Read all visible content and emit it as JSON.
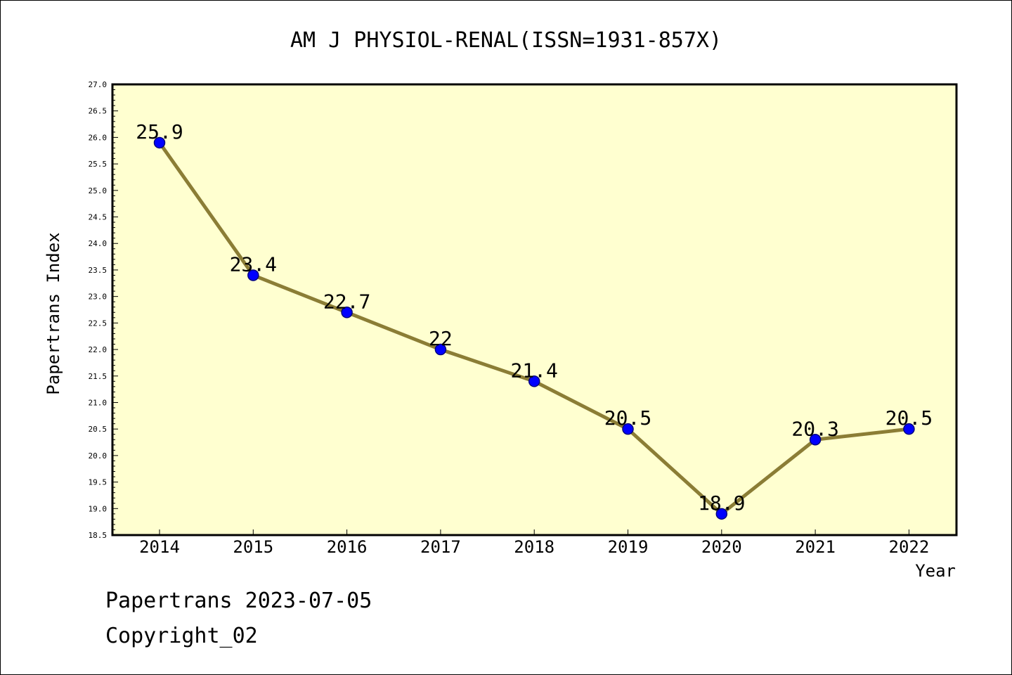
{
  "chart_data": {
    "type": "line",
    "title": "AM J PHYSIOL-RENAL(ISSN=1931-857X)",
    "xlabel": "Year",
    "ylabel": "Papertrans Index",
    "categories": [
      "2014",
      "2015",
      "2016",
      "2017",
      "2018",
      "2019",
      "2020",
      "2021",
      "2022"
    ],
    "series": [
      {
        "values": [
          25.9,
          23.4,
          22.7,
          22,
          21.4,
          20.5,
          18.9,
          20.3,
          20.5
        ],
        "labels": [
          "25.9",
          "23.4",
          "22.7",
          "22",
          "21.4",
          "20.5",
          "18.9",
          "20.3",
          "20.5"
        ]
      }
    ],
    "ylim": [
      18.5,
      27.0
    ],
    "ytick_labels": [
      "18.5",
      "19.0",
      "19.5",
      "20.0",
      "20.5",
      "21.0",
      "21.5",
      "22.0",
      "22.5",
      "23.0",
      "23.5",
      "24.0",
      "24.5",
      "25.0",
      "25.5",
      "26.0",
      "26.5",
      "27.0"
    ],
    "grid": false,
    "legend": "none",
    "colors": {
      "plot_background": "#ffffd0",
      "line": "#8b7d35",
      "marker": "#0000ff",
      "marker_edge": "#000080"
    }
  },
  "footer": {
    "date_line": "Papertrans 2023-07-05",
    "copyright": "Copyright_02"
  }
}
